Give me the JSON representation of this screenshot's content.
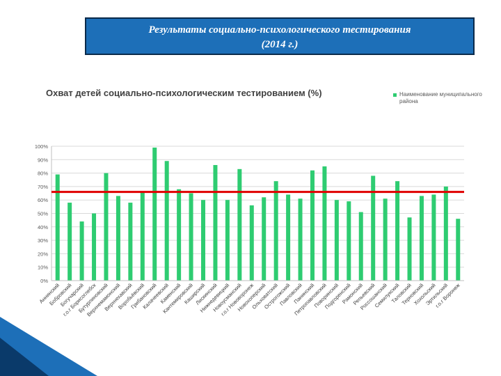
{
  "slide": {
    "title_line1": "Результаты  социально-психологического тестирования",
    "title_line2": "(2014 г.)"
  },
  "chart_data": {
    "type": "bar",
    "title": "Охват детей социально-психологическим тестированием (%)",
    "legend": "Наименование муниципального района",
    "categories": [
      "Аннинский",
      "Бобровский",
      "Богучарский",
      "г.о.г Борисоглебск",
      "Бутурлиновский",
      "Верхнемамонский",
      "Верхнехавский",
      "Воробьёвский",
      "Грибановский",
      "Калачеевский",
      "Каменский",
      "Кантемировский",
      "Каширский",
      "Лискинский",
      "Нижнедевицкий",
      "Новоусманский",
      "г.о.г Нововоронеж",
      "Новохоперский",
      "Ольховатский",
      "Острогожский",
      "Павловский",
      "Панинский",
      "Петропавловский",
      "Поворинский",
      "Подгоренский",
      "Рамонский",
      "Репьевский",
      "Россошанский",
      "Семилукский",
      "Таловский",
      "Терновский",
      "Хохольский",
      "Эртильский",
      "г.о.г Воронеж"
    ],
    "values": [
      79,
      58,
      44,
      50,
      80,
      63,
      58,
      66,
      99,
      89,
      68,
      65,
      60,
      86,
      60,
      83,
      56,
      62,
      74,
      64,
      61,
      82,
      85,
      60,
      59,
      51,
      78,
      61,
      74,
      47,
      63,
      64,
      70,
      46
    ],
    "threshold": 66,
    "threshold_color": "#e00000",
    "bar_color": "#2ecc71",
    "ylim": [
      0,
      100
    ],
    "yticks": [
      "0%",
      "10%",
      "20%",
      "30%",
      "40%",
      "50%",
      "60%",
      "70%",
      "80%",
      "90%",
      "100%"
    ],
    "grid": true
  }
}
